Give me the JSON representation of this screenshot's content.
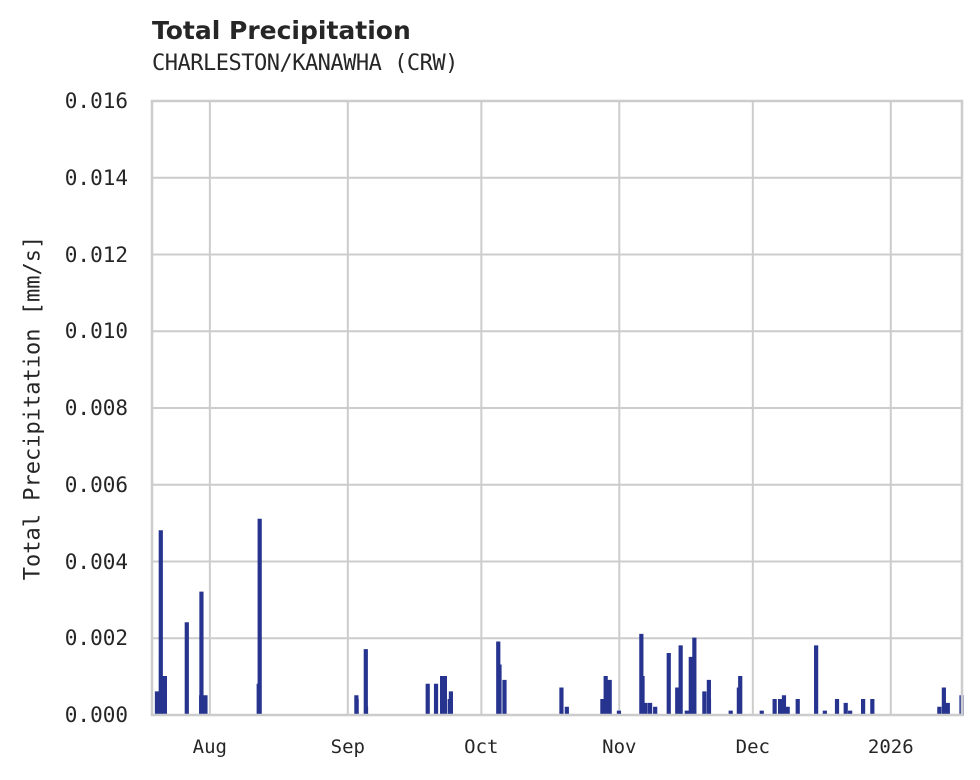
{
  "header": {
    "title": "Total Precipitation",
    "subtitle": "CHARLESTON/KANAWHA (CRW)"
  },
  "axes": {
    "ylabel": "Total Precipitation [mm/s]",
    "yticks": [
      "0.000",
      "0.002",
      "0.004",
      "0.006",
      "0.008",
      "0.010",
      "0.012",
      "0.014",
      "0.016"
    ],
    "xticks": [
      "Aug",
      "Sep",
      "Oct",
      "Nov",
      "Dec",
      "2026"
    ]
  },
  "colors": {
    "series": "#26348f",
    "grid": "#cccccc",
    "text": "#262626"
  },
  "chart_data": {
    "type": "line",
    "title": "Total Precipitation",
    "subtitle": "CHARLESTON/KANAWHA (CRW)",
    "xlabel": "",
    "ylabel": "Total Precipitation [mm/s]",
    "ylim": [
      0,
      0.016
    ],
    "xlim": [
      "2025-07-19",
      "2026-01-17"
    ],
    "grid": true,
    "legend": null,
    "x_tick_labels": [
      "Aug",
      "Sep",
      "Oct",
      "Nov",
      "Dec",
      "2026"
    ],
    "y_tick_labels": [
      "0.000",
      "0.002",
      "0.004",
      "0.006",
      "0.008",
      "0.010",
      "0.012",
      "0.014",
      "0.016"
    ],
    "series": [
      {
        "name": "Total Precipitation",
        "points": [
          {
            "date": "2025-07-20",
            "value": 0.0006
          },
          {
            "date": "2025-07-21",
            "value": 0.0015
          },
          {
            "date": "2025-07-21",
            "value": 0.0048
          },
          {
            "date": "2025-07-22",
            "value": 0.001
          },
          {
            "date": "2025-07-27",
            "value": 0.0024
          },
          {
            "date": "2025-07-30",
            "value": 0.0005
          },
          {
            "date": "2025-07-30",
            "value": 0.0032
          },
          {
            "date": "2025-07-31",
            "value": 0.0005
          },
          {
            "date": "2025-08-12",
            "value": 0.0051
          },
          {
            "date": "2025-08-12",
            "value": 0.0008
          },
          {
            "date": "2025-09-03",
            "value": 0.0004
          },
          {
            "date": "2025-09-03",
            "value": 0.0005
          },
          {
            "date": "2025-09-05",
            "value": 0.0017
          },
          {
            "date": "2025-09-05",
            "value": 0.0002
          },
          {
            "date": "2025-09-19",
            "value": 0.0008
          },
          {
            "date": "2025-09-21",
            "value": 0.0008
          },
          {
            "date": "2025-09-22",
            "value": 0.001
          },
          {
            "date": "2025-09-23",
            "value": 0.001
          },
          {
            "date": "2025-09-24",
            "value": 0.0006
          },
          {
            "date": "2025-09-24",
            "value": 0.0004
          },
          {
            "date": "2025-10-05",
            "value": 0.0013
          },
          {
            "date": "2025-10-05",
            "value": 0.0019
          },
          {
            "date": "2025-10-06",
            "value": 0.0009
          },
          {
            "date": "2025-10-19",
            "value": 0.0007
          },
          {
            "date": "2025-10-20",
            "value": 0.0002
          },
          {
            "date": "2025-10-28",
            "value": 0.0004
          },
          {
            "date": "2025-10-29",
            "value": 0.001
          },
          {
            "date": "2025-10-30",
            "value": 0.0009
          },
          {
            "date": "2025-11-01",
            "value": 0.0001
          },
          {
            "date": "2025-11-06",
            "value": 0.0021
          },
          {
            "date": "2025-11-06",
            "value": 0.001
          },
          {
            "date": "2025-11-07",
            "value": 0.0003
          },
          {
            "date": "2025-11-08",
            "value": 0.0003
          },
          {
            "date": "2025-11-09",
            "value": 0.0002
          },
          {
            "date": "2025-11-12",
            "value": 0.0016
          },
          {
            "date": "2025-11-14",
            "value": 0.0007
          },
          {
            "date": "2025-11-15",
            "value": 0.0018
          },
          {
            "date": "2025-11-16",
            "value": 0.0001
          },
          {
            "date": "2025-11-17",
            "value": 0.0015
          },
          {
            "date": "2025-11-18",
            "value": 0.002
          },
          {
            "date": "2025-11-20",
            "value": 0.0006
          },
          {
            "date": "2025-11-21",
            "value": 0.0009
          },
          {
            "date": "2025-11-21",
            "value": 0.0004
          },
          {
            "date": "2025-11-26",
            "value": 0.0001
          },
          {
            "date": "2025-11-28",
            "value": 0.0007
          },
          {
            "date": "2025-11-28",
            "value": 0.001
          },
          {
            "date": "2025-12-03",
            "value": 0.0001
          },
          {
            "date": "2025-12-06",
            "value": 0.0004
          },
          {
            "date": "2025-12-07",
            "value": 0.0004
          },
          {
            "date": "2025-12-08",
            "value": 0.0005
          },
          {
            "date": "2025-12-09",
            "value": 0.0002
          },
          {
            "date": "2025-12-11",
            "value": 0.0004
          },
          {
            "date": "2025-12-15",
            "value": 0.0018
          },
          {
            "date": "2025-12-17",
            "value": 0.0001
          },
          {
            "date": "2025-12-20",
            "value": 0.0004
          },
          {
            "date": "2025-12-22",
            "value": 0.0003
          },
          {
            "date": "2025-12-23",
            "value": 0.0001
          },
          {
            "date": "2025-12-26",
            "value": 0.0004
          },
          {
            "date": "2025-12-28",
            "value": 0.0004
          },
          {
            "date": "2026-01-12",
            "value": 0.0002
          },
          {
            "date": "2026-01-13",
            "value": 0.0007
          },
          {
            "date": "2026-01-14",
            "value": 0.0003
          },
          {
            "date": "2026-01-17",
            "value": 0.0005
          }
        ]
      }
    ]
  }
}
